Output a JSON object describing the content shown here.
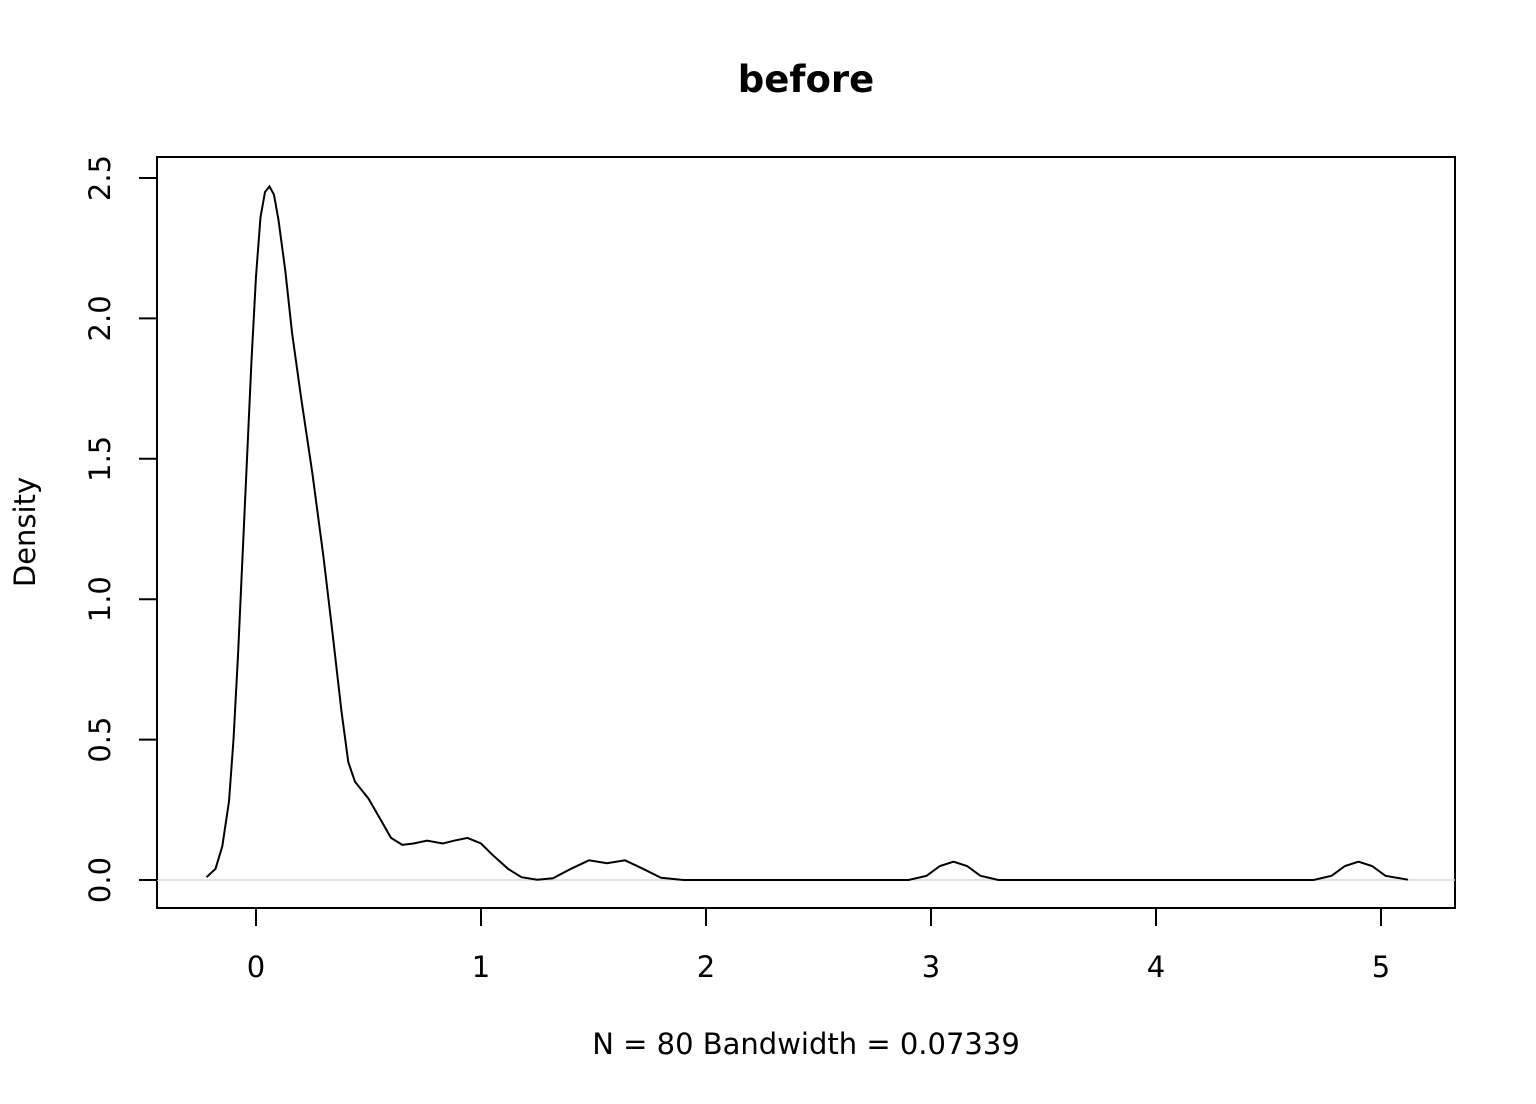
{
  "chart_data": {
    "type": "line",
    "title": "before",
    "xlabel": "N = 80   Bandwidth = 0.07339",
    "ylabel": "Density",
    "xlim": [
      -0.44,
      5.33
    ],
    "ylim": [
      -0.1,
      2.6
    ],
    "x_ticks": [
      0,
      1,
      2,
      3,
      4,
      5
    ],
    "x_tick_labels": [
      "0",
      "1",
      "2",
      "3",
      "4",
      "5"
    ],
    "y_ticks": [
      0.0,
      0.5,
      1.0,
      1.5,
      2.0,
      2.5
    ],
    "y_tick_labels": [
      "0.0",
      "0.5",
      "1.0",
      "1.5",
      "2.0",
      "2.5"
    ],
    "grid": false,
    "zero_baseline": true,
    "series": [
      {
        "color": "#000000",
        "points": [
          [
            -0.22,
            0.01
          ],
          [
            -0.18,
            0.04
          ],
          [
            -0.15,
            0.12
          ],
          [
            -0.12,
            0.28
          ],
          [
            -0.1,
            0.5
          ],
          [
            -0.08,
            0.8
          ],
          [
            -0.06,
            1.15
          ],
          [
            -0.04,
            1.5
          ],
          [
            -0.02,
            1.85
          ],
          [
            0.0,
            2.15
          ],
          [
            0.02,
            2.36
          ],
          [
            0.04,
            2.45
          ],
          [
            0.06,
            2.47
          ],
          [
            0.08,
            2.44
          ],
          [
            0.1,
            2.35
          ],
          [
            0.13,
            2.17
          ],
          [
            0.16,
            1.95
          ],
          [
            0.2,
            1.72
          ],
          [
            0.25,
            1.45
          ],
          [
            0.3,
            1.15
          ],
          [
            0.34,
            0.88
          ],
          [
            0.38,
            0.6
          ],
          [
            0.41,
            0.42
          ],
          [
            0.44,
            0.35
          ],
          [
            0.5,
            0.29
          ],
          [
            0.55,
            0.22
          ],
          [
            0.6,
            0.15
          ],
          [
            0.65,
            0.125
          ],
          [
            0.7,
            0.13
          ],
          [
            0.76,
            0.14
          ],
          [
            0.83,
            0.13
          ],
          [
            0.88,
            0.14
          ],
          [
            0.94,
            0.15
          ],
          [
            1.0,
            0.13
          ],
          [
            1.05,
            0.09
          ],
          [
            1.12,
            0.04
          ],
          [
            1.18,
            0.01
          ],
          [
            1.25,
            0.001
          ],
          [
            1.32,
            0.006
          ],
          [
            1.4,
            0.04
          ],
          [
            1.48,
            0.07
          ],
          [
            1.56,
            0.06
          ],
          [
            1.64,
            0.07
          ],
          [
            1.72,
            0.04
          ],
          [
            1.8,
            0.008
          ],
          [
            1.9,
            0.0
          ],
          [
            2.9,
            0.0
          ],
          [
            2.98,
            0.015
          ],
          [
            3.04,
            0.05
          ],
          [
            3.1,
            0.065
          ],
          [
            3.16,
            0.05
          ],
          [
            3.22,
            0.015
          ],
          [
            3.3,
            0.0
          ],
          [
            4.7,
            0.0
          ],
          [
            4.78,
            0.015
          ],
          [
            4.84,
            0.05
          ],
          [
            4.9,
            0.065
          ],
          [
            4.96,
            0.05
          ],
          [
            5.02,
            0.015
          ],
          [
            5.12,
            0.001
          ]
        ]
      }
    ]
  }
}
